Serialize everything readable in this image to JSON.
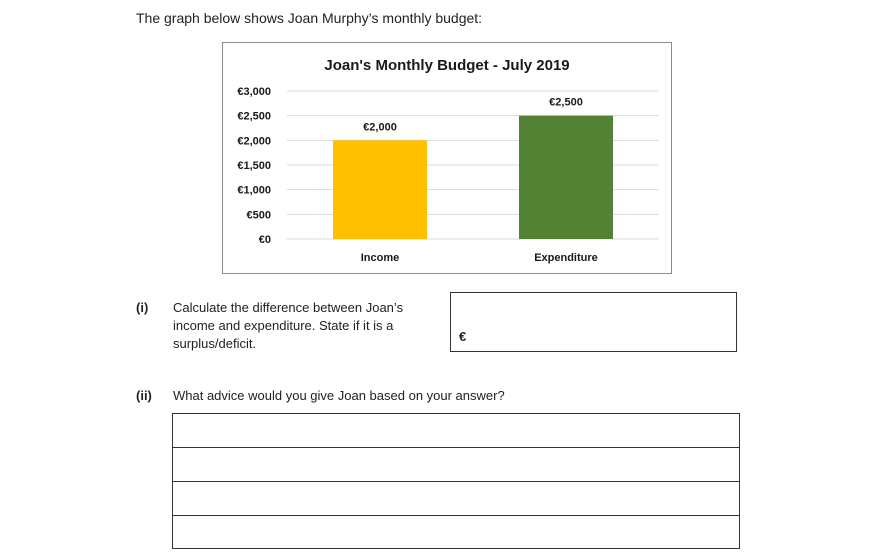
{
  "intro_text": "The graph below shows Joan Murphy’s monthly budget:",
  "chart_data": {
    "type": "bar",
    "title": "Joan's Monthly Budget - July 2019",
    "categories": [
      "Income",
      "Expenditure"
    ],
    "values": [
      2000,
      2500
    ],
    "data_labels": [
      "€2,000",
      "€2,500"
    ],
    "colors": [
      "#FFC000",
      "#548235"
    ],
    "y_ticks": [
      "€0",
      "€500",
      "€1,000",
      "€1,500",
      "€2,000",
      "€2,500",
      "€3,000"
    ],
    "ylim": [
      0,
      3000
    ],
    "grid": true,
    "legend": "none"
  },
  "question_i": {
    "number": "(i)",
    "lines": [
      "Calculate the difference between Joan’s",
      "income and expenditure.  State if it is a",
      "surplus/deficit."
    ],
    "answer_prefix": "€"
  },
  "question_ii": {
    "number": "(ii)",
    "text": "What advice would you give Joan based on your answer?"
  }
}
